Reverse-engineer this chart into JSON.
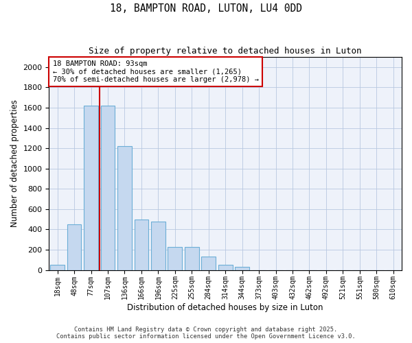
{
  "title1": "18, BAMPTON ROAD, LUTON, LU4 0DD",
  "title2": "Size of property relative to detached houses in Luton",
  "xlabel": "Distribution of detached houses by size in Luton",
  "ylabel": "Number of detached properties",
  "categories": [
    "18sqm",
    "48sqm",
    "77sqm",
    "107sqm",
    "136sqm",
    "166sqm",
    "196sqm",
    "225sqm",
    "255sqm",
    "284sqm",
    "314sqm",
    "344sqm",
    "373sqm",
    "403sqm",
    "432sqm",
    "462sqm",
    "492sqm",
    "521sqm",
    "551sqm",
    "580sqm",
    "610sqm"
  ],
  "values": [
    50,
    450,
    1620,
    1620,
    1220,
    500,
    480,
    230,
    225,
    130,
    50,
    30,
    0,
    0,
    0,
    0,
    0,
    0,
    0,
    0,
    0
  ],
  "bar_color": "#c5d8ef",
  "bar_edge_color": "#6baed6",
  "vline_x": 2.5,
  "vline_color": "#cc0000",
  "annotation_text": "18 BAMPTON ROAD: 93sqm\n← 30% of detached houses are smaller (1,265)\n70% of semi-detached houses are larger (2,978) →",
  "annotation_box_color": "#ffffff",
  "annotation_box_edge": "#cc0000",
  "ylim": [
    0,
    2100
  ],
  "yticks": [
    0,
    200,
    400,
    600,
    800,
    1000,
    1200,
    1400,
    1600,
    1800,
    2000
  ],
  "bg_color": "#eef2fa",
  "footer1": "Contains HM Land Registry data © Crown copyright and database right 2025.",
  "footer2": "Contains public sector information licensed under the Open Government Licence v3.0."
}
